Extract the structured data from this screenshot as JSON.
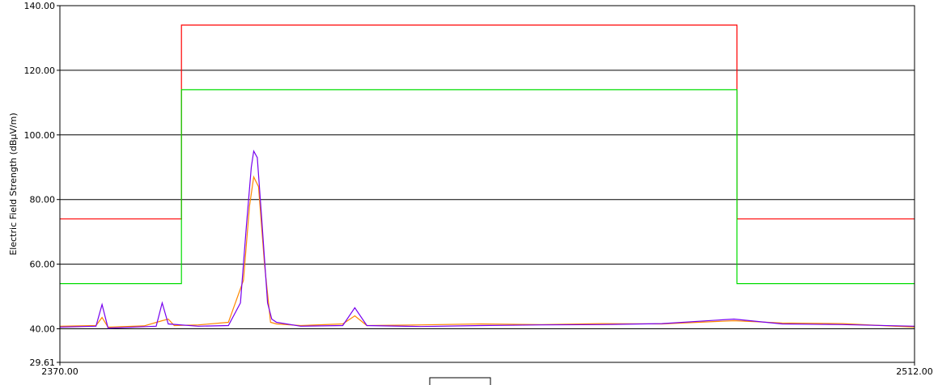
{
  "chart_data": {
    "type": "line",
    "ylabel": "Electric Field Strength (dBµV/m)",
    "xlim": [
      2370.0,
      2512.0
    ],
    "ylim": [
      29.61,
      140.0
    ],
    "x_ticks": [
      "2370.00",
      "2512.00"
    ],
    "y_ticks": [
      {
        "value": 140.0,
        "label": "140.00"
      },
      {
        "value": 120.0,
        "label": "120.00"
      },
      {
        "value": 100.0,
        "label": "100.00"
      },
      {
        "value": 80.0,
        "label": "80.00"
      },
      {
        "value": 60.0,
        "label": "60.00"
      },
      {
        "value": 40.0,
        "label": "40.00"
      },
      {
        "value": 29.61,
        "label": "29.61"
      }
    ],
    "gridlines_y": [
      120.0,
      100.0,
      80.0,
      60.0,
      40.0
    ],
    "grid": true,
    "series": [
      {
        "color": "#ff0000",
        "x": [
          2370.0,
          2390.2,
          2390.2,
          2482.5,
          2482.5,
          2512.0
        ],
        "y": [
          74.0,
          74.0,
          134.0,
          134.0,
          74.0,
          74.0
        ]
      },
      {
        "color": "#00dd00",
        "x": [
          2370.0,
          2390.2,
          2390.2,
          2482.5,
          2482.5,
          2512.0
        ],
        "y": [
          54.0,
          54.0,
          114.0,
          114.0,
          54.0,
          54.0
        ]
      },
      {
        "color": "#ff8800",
        "x": [
          2370.0,
          2376.0,
          2377.0,
          2378.0,
          2384.0,
          2387.0,
          2388.0,
          2389.0,
          2393.0,
          2398.0,
          2400.5,
          2401.5,
          2402.2,
          2403.0,
          2404.0,
          2405.0,
          2406.0,
          2410.0,
          2417.0,
          2419.0,
          2421.0,
          2430.0,
          2440.0,
          2450.0,
          2460.0,
          2470.0,
          2482.0,
          2490.0,
          2500.0,
          2512.0
        ],
        "y": [
          40.8,
          41.0,
          43.5,
          40.5,
          40.9,
          42.5,
          43.0,
          41.0,
          41.2,
          42.0,
          55.0,
          78.0,
          87.0,
          84.0,
          60.0,
          42.0,
          41.5,
          41.0,
          41.5,
          44.0,
          41.0,
          41.2,
          41.5,
          41.3,
          41.6,
          41.5,
          42.5,
          41.8,
          41.6,
          40.5
        ]
      },
      {
        "color": "#7700ee",
        "x": [
          2370.0,
          2376.0,
          2377.0,
          2378.0,
          2386.0,
          2387.0,
          2388.0,
          2393.0,
          2398.0,
          2400.0,
          2401.0,
          2401.8,
          2402.2,
          2402.8,
          2403.5,
          2404.5,
          2405.2,
          2406.0,
          2410.0,
          2417.0,
          2419.0,
          2421.0,
          2430.0,
          2440.0,
          2450.0,
          2460.0,
          2470.0,
          2482.0,
          2490.0,
          2500.0,
          2512.0
        ],
        "y": [
          40.5,
          40.8,
          47.5,
          40.2,
          40.8,
          48.0,
          41.5,
          40.8,
          41.0,
          48.0,
          72.0,
          90.0,
          95.0,
          93.0,
          75.0,
          48.0,
          43.0,
          42.0,
          40.8,
          41.0,
          46.5,
          41.0,
          40.7,
          41.0,
          41.2,
          41.3,
          41.6,
          43.0,
          41.5,
          41.3,
          40.8
        ]
      }
    ]
  }
}
